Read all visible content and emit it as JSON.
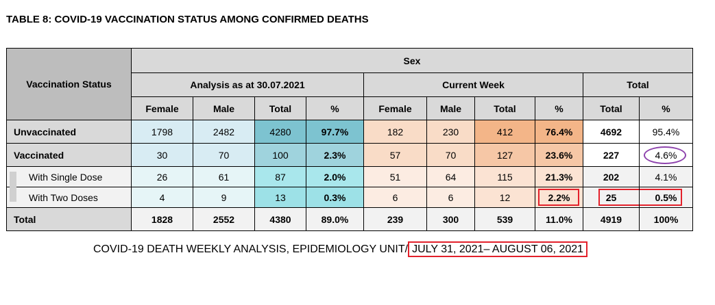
{
  "title": "TABLE 8: COVID-19 VACCINATION STATUS AMONG CONFIRMED DEATHS",
  "headers": {
    "vaccination_status": "Vaccination Status",
    "sex": "Sex",
    "group_analysis": "Analysis as at 30.07.2021",
    "group_current": "Current Week",
    "group_total": "Total",
    "col_female": "Female",
    "col_male": "Male",
    "col_total": "Total",
    "col_pct": "%"
  },
  "rows": [
    {
      "label": "Unvaccinated",
      "a_female": "1798",
      "a_male": "2482",
      "a_total": "4280",
      "a_pct": "97.7%",
      "c_female": "182",
      "c_male": "230",
      "c_total": "412",
      "c_pct": "76.4%",
      "t_total": "4692",
      "t_pct": "95.4%"
    },
    {
      "label": "Vaccinated",
      "a_female": "30",
      "a_male": "70",
      "a_total": "100",
      "a_pct": "2.3%",
      "c_female": "57",
      "c_male": "70",
      "c_total": "127",
      "c_pct": "23.6%",
      "t_total": "227",
      "t_pct": "4.6%"
    },
    {
      "label": "With Single Dose",
      "a_female": "26",
      "a_male": "61",
      "a_total": "87",
      "a_pct": "2.0%",
      "c_female": "51",
      "c_male": "64",
      "c_total": "115",
      "c_pct": "21.3%",
      "t_total": "202",
      "t_pct": "4.1%"
    },
    {
      "label": "With Two Doses",
      "a_female": "4",
      "a_male": "9",
      "a_total": "13",
      "a_pct": "0.3%",
      "c_female": "6",
      "c_male": "6",
      "c_total": "12",
      "c_pct": "2.2%",
      "t_total": "25",
      "t_pct": "0.5%"
    },
    {
      "label": "Total",
      "a_female": "1828",
      "a_male": "2552",
      "a_total": "4380",
      "a_pct": "89.0%",
      "c_female": "239",
      "c_male": "300",
      "c_total": "539",
      "c_pct": "11.0%",
      "t_total": "4919",
      "t_pct": "100%"
    }
  ],
  "caption": {
    "prefix": "COVID-19 DEATH WEEKLY ANALYSIS, EPIDEMIOLOGY UNIT/",
    "dates": "JULY 31, 2021– AUGUST 06, 2021"
  },
  "colors": {
    "highlight_box": "#e3202a",
    "highlight_circle": "#8e44ad"
  }
}
